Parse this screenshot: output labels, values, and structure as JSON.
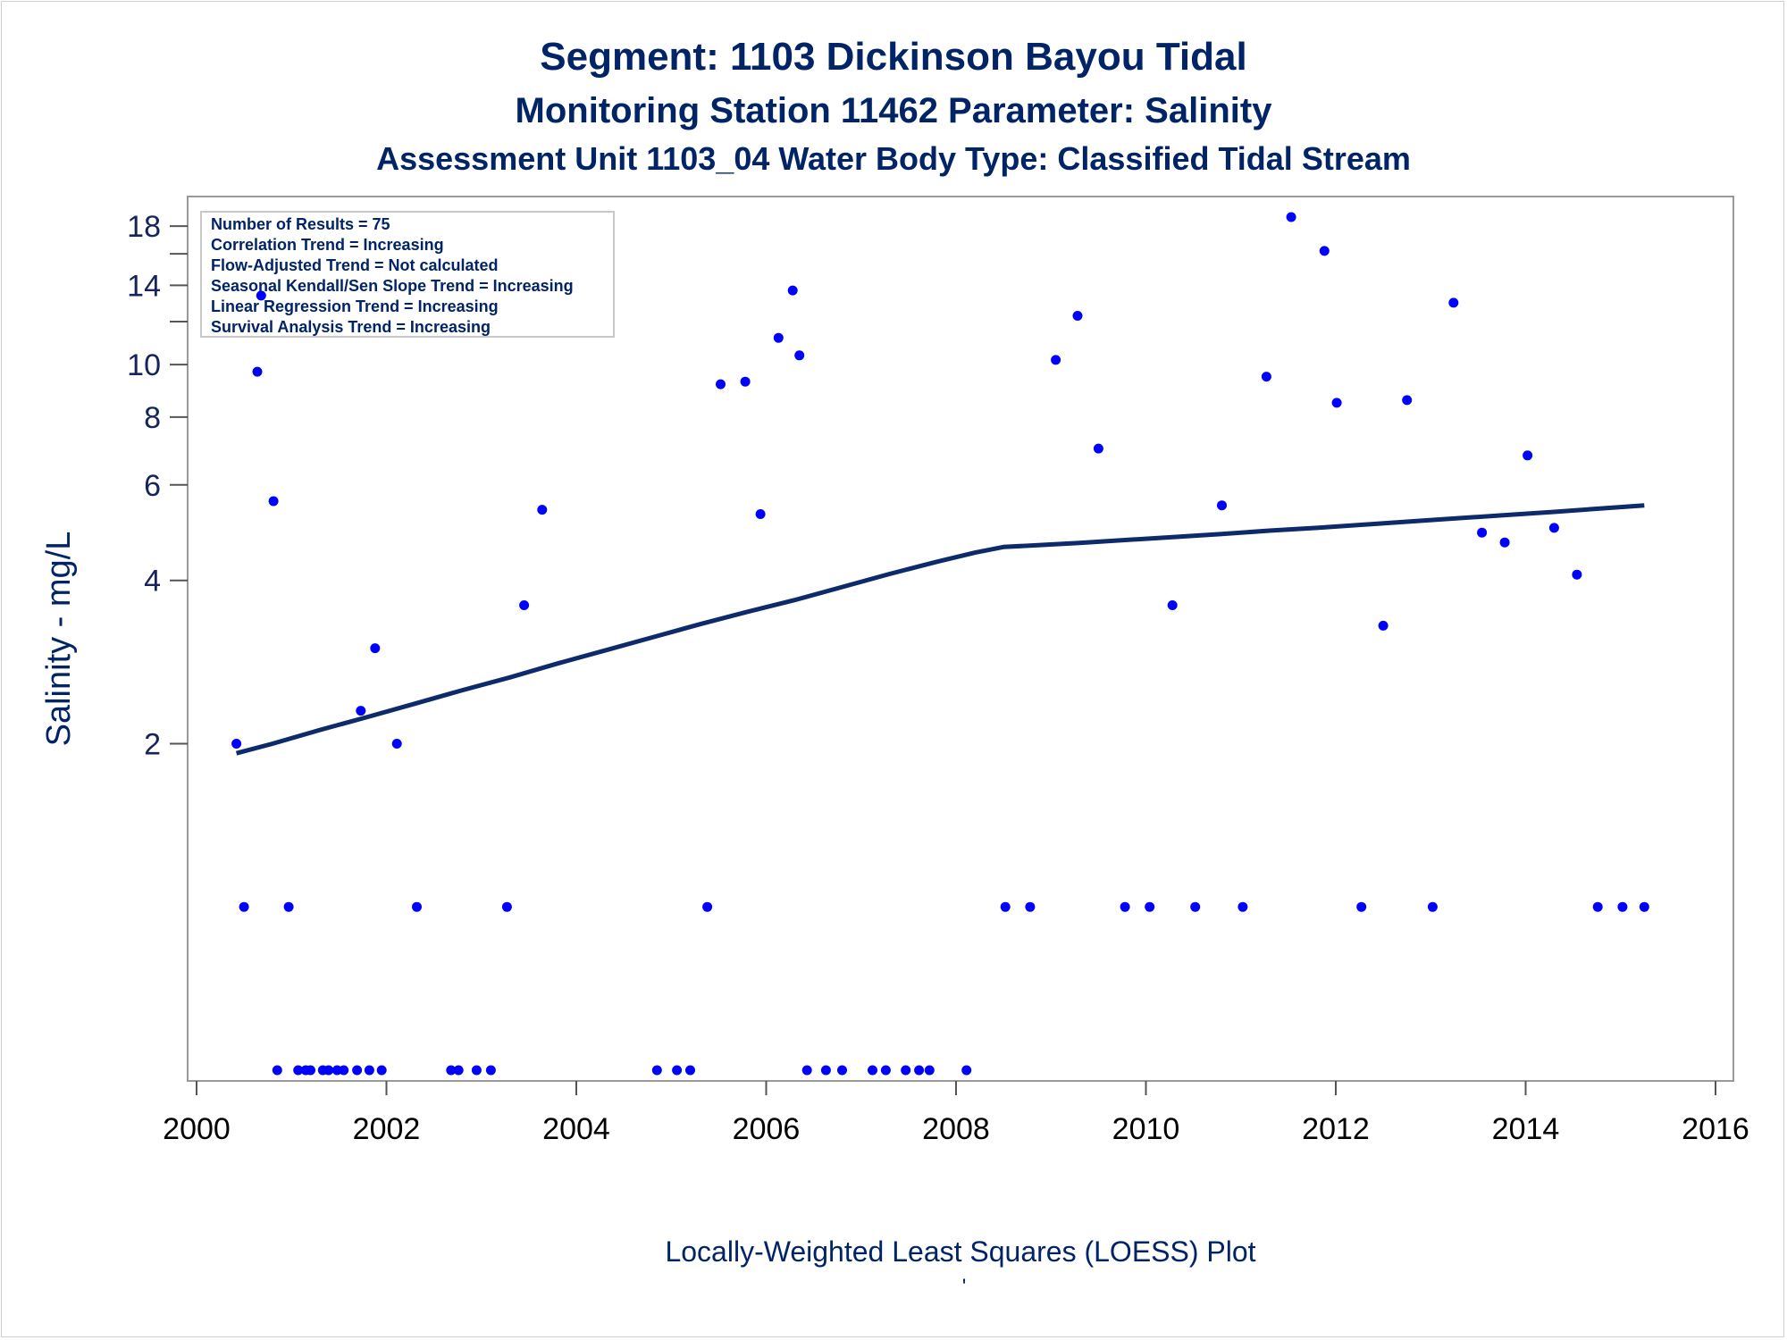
{
  "chart_data": {
    "type": "scatter",
    "title": "Segment: 1103  Dickinson Bayou Tidal",
    "subtitle": "Monitoring Station 11462 Parameter: Salinity",
    "subtitle2": "Assessment Unit 1103_04   Water Body Type: Classified Tidal Stream",
    "xlabel": "Locally-Weighted Least Squares (LOESS) Plot",
    "ylabel": "Salinity - mg/L",
    "footnote": "'",
    "y_scale": "log",
    "xlim": [
      2000,
      2016
    ],
    "ylim": [
      0.5,
      19.5
    ],
    "x_ticks": [
      2000,
      2002,
      2004,
      2006,
      2008,
      2010,
      2012,
      2014,
      2016
    ],
    "y_tick_labels": [
      2,
      4,
      6,
      8,
      10,
      14,
      18
    ],
    "y_minor_ticks": [
      12,
      16
    ],
    "legend_position": "top-left",
    "legend_entries": [
      "Number of Results = 75",
      "Correlation Trend = Increasing",
      "Flow-Adjusted Trend = Not calculated",
      "Seasonal Kendall/Sen Slope Trend = Increasing",
      "Linear Regression Trend = Increasing",
      "Survival Analysis Trend = Increasing"
    ],
    "point_color": "#0000ff",
    "line_color": "#0d2a6b",
    "points": [
      {
        "x": 2000.42,
        "y": 2.0
      },
      {
        "x": 2000.5,
        "y": 1.0
      },
      {
        "x": 2000.64,
        "y": 9.7
      },
      {
        "x": 2000.68,
        "y": 13.4
      },
      {
        "x": 2000.81,
        "y": 5.6
      },
      {
        "x": 2000.85,
        "y": 0.5
      },
      {
        "x": 2000.97,
        "y": 1.0
      },
      {
        "x": 2001.07,
        "y": 0.5
      },
      {
        "x": 2001.15,
        "y": 0.5
      },
      {
        "x": 2001.2,
        "y": 0.5
      },
      {
        "x": 2001.33,
        "y": 0.5
      },
      {
        "x": 2001.39,
        "y": 0.5
      },
      {
        "x": 2001.48,
        "y": 0.5
      },
      {
        "x": 2001.55,
        "y": 0.5
      },
      {
        "x": 2001.69,
        "y": 0.5
      },
      {
        "x": 2001.73,
        "y": 2.3
      },
      {
        "x": 2001.82,
        "y": 0.5
      },
      {
        "x": 2001.88,
        "y": 3.0
      },
      {
        "x": 2001.95,
        "y": 0.5
      },
      {
        "x": 2002.11,
        "y": 2.0
      },
      {
        "x": 2002.32,
        "y": 1.0
      },
      {
        "x": 2002.68,
        "y": 0.5
      },
      {
        "x": 2002.76,
        "y": 0.5
      },
      {
        "x": 2002.95,
        "y": 0.5
      },
      {
        "x": 2003.1,
        "y": 0.5
      },
      {
        "x": 2003.27,
        "y": 1.0
      },
      {
        "x": 2003.45,
        "y": 3.6
      },
      {
        "x": 2003.64,
        "y": 5.4
      },
      {
        "x": 2004.85,
        "y": 0.5
      },
      {
        "x": 2005.06,
        "y": 0.5
      },
      {
        "x": 2005.2,
        "y": 0.5
      },
      {
        "x": 2005.38,
        "y": 1.0
      },
      {
        "x": 2005.52,
        "y": 9.2
      },
      {
        "x": 2005.78,
        "y": 9.3
      },
      {
        "x": 2005.94,
        "y": 5.3
      },
      {
        "x": 2006.13,
        "y": 11.2
      },
      {
        "x": 2006.28,
        "y": 13.7
      },
      {
        "x": 2006.35,
        "y": 10.4
      },
      {
        "x": 2006.43,
        "y": 0.5
      },
      {
        "x": 2006.63,
        "y": 0.5
      },
      {
        "x": 2006.8,
        "y": 0.5
      },
      {
        "x": 2007.12,
        "y": 0.5
      },
      {
        "x": 2007.26,
        "y": 0.5
      },
      {
        "x": 2007.47,
        "y": 0.5
      },
      {
        "x": 2007.61,
        "y": 0.5
      },
      {
        "x": 2007.72,
        "y": 0.5
      },
      {
        "x": 2008.11,
        "y": 0.5
      },
      {
        "x": 2008.52,
        "y": 1.0
      },
      {
        "x": 2008.78,
        "y": 1.0
      },
      {
        "x": 2009.05,
        "y": 10.2
      },
      {
        "x": 2009.28,
        "y": 12.3
      },
      {
        "x": 2009.5,
        "y": 7.0
      },
      {
        "x": 2009.78,
        "y": 1.0
      },
      {
        "x": 2010.04,
        "y": 1.0
      },
      {
        "x": 2010.28,
        "y": 3.6
      },
      {
        "x": 2010.52,
        "y": 1.0
      },
      {
        "x": 2010.8,
        "y": 5.5
      },
      {
        "x": 2011.02,
        "y": 1.0
      },
      {
        "x": 2011.27,
        "y": 9.5
      },
      {
        "x": 2011.53,
        "y": 18.7
      },
      {
        "x": 2011.88,
        "y": 16.2
      },
      {
        "x": 2012.01,
        "y": 8.5
      },
      {
        "x": 2012.27,
        "y": 1.0
      },
      {
        "x": 2012.5,
        "y": 3.3
      },
      {
        "x": 2012.75,
        "y": 8.6
      },
      {
        "x": 2013.02,
        "y": 1.0
      },
      {
        "x": 2013.24,
        "y": 13.0
      },
      {
        "x": 2013.54,
        "y": 4.9
      },
      {
        "x": 2013.78,
        "y": 4.7
      },
      {
        "x": 2014.02,
        "y": 6.8
      },
      {
        "x": 2014.3,
        "y": 5.0
      },
      {
        "x": 2014.54,
        "y": 4.1
      },
      {
        "x": 2014.76,
        "y": 1.0
      },
      {
        "x": 2015.02,
        "y": 1.0
      },
      {
        "x": 2015.25,
        "y": 1.0
      }
    ],
    "loess": [
      {
        "x": 2000.42,
        "y": 1.92
      },
      {
        "x": 2000.8,
        "y": 2.0
      },
      {
        "x": 2001.3,
        "y": 2.12
      },
      {
        "x": 2001.8,
        "y": 2.24
      },
      {
        "x": 2002.3,
        "y": 2.37
      },
      {
        "x": 2002.8,
        "y": 2.51
      },
      {
        "x": 2003.3,
        "y": 2.65
      },
      {
        "x": 2003.8,
        "y": 2.81
      },
      {
        "x": 2004.3,
        "y": 2.97
      },
      {
        "x": 2004.8,
        "y": 3.14
      },
      {
        "x": 2005.3,
        "y": 3.32
      },
      {
        "x": 2005.8,
        "y": 3.5
      },
      {
        "x": 2006.3,
        "y": 3.68
      },
      {
        "x": 2006.8,
        "y": 3.89
      },
      {
        "x": 2007.3,
        "y": 4.11
      },
      {
        "x": 2007.8,
        "y": 4.33
      },
      {
        "x": 2008.2,
        "y": 4.5
      },
      {
        "x": 2008.5,
        "y": 4.61
      },
      {
        "x": 2008.8,
        "y": 4.64
      },
      {
        "x": 2009.3,
        "y": 4.69
      },
      {
        "x": 2009.8,
        "y": 4.75
      },
      {
        "x": 2010.3,
        "y": 4.81
      },
      {
        "x": 2010.8,
        "y": 4.87
      },
      {
        "x": 2011.3,
        "y": 4.94
      },
      {
        "x": 2011.8,
        "y": 5.0
      },
      {
        "x": 2012.3,
        "y": 5.07
      },
      {
        "x": 2012.8,
        "y": 5.14
      },
      {
        "x": 2013.3,
        "y": 5.21
      },
      {
        "x": 2013.8,
        "y": 5.28
      },
      {
        "x": 2014.3,
        "y": 5.35
      },
      {
        "x": 2014.8,
        "y": 5.43
      },
      {
        "x": 2015.25,
        "y": 5.5
      }
    ]
  }
}
